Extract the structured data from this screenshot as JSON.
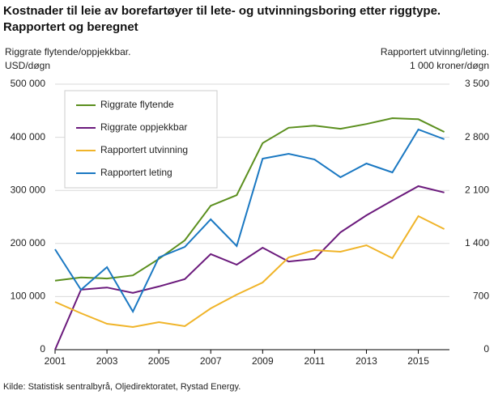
{
  "chart_data": {
    "type": "line",
    "title": "Kostnader til leie av borefartøyer til lete- og utvinningsboring etter riggtype. Rapportert og beregnet",
    "y_label": [
      "Riggrate  flytende/oppjekkbar.",
      "USD/døgn"
    ],
    "y2_label": [
      "Rapportert utvinng/leting.",
      "1 000 kroner/døgn"
    ],
    "source": "Kilde: Statistisk sentralbyrå, Oljedirektoratet, Rystad Energy.",
    "x": [
      2001,
      2002,
      2003,
      2004,
      2005,
      2006,
      2007,
      2008,
      2009,
      2010,
      2011,
      2012,
      2013,
      2014,
      2015,
      2016
    ],
    "xlim": [
      2001,
      2016.2
    ],
    "xticks": [
      2001,
      2003,
      2005,
      2007,
      2009,
      2011,
      2013,
      2015
    ],
    "ylim": [
      0,
      500000
    ],
    "yticks": [
      0,
      {
        "value": 100000,
        "label": "100 000"
      },
      {
        "value": 200000,
        "label": "200 000"
      },
      {
        "value": 300000,
        "label": "300 000"
      },
      {
        "value": 400000,
        "label": "400 000"
      },
      {
        "value": 500000,
        "label": "500 000"
      }
    ],
    "y2lim": [
      0,
      3500
    ],
    "y2ticks": [
      0,
      700,
      {
        "value": 1400,
        "label": "1 400"
      },
      {
        "value": 2100,
        "label": "2 100"
      },
      {
        "value": 2800,
        "label": "2 800"
      },
      {
        "value": 3500,
        "label": "3 500"
      }
    ],
    "grid": true,
    "legend": "upper left",
    "series": [
      {
        "name": "Riggrate flytende",
        "color": "#5b8f1e",
        "values": [
          130000,
          136000,
          134000,
          140000,
          171000,
          206000,
          271000,
          291000,
          389000,
          418000,
          422000,
          416000,
          425000,
          436000,
          434000,
          410000
        ]
      },
      {
        "name": "Riggrate oppjekkbar",
        "color": "#6b1a7c",
        "values": [
          0,
          113000,
          117000,
          107000,
          119000,
          133000,
          180000,
          160000,
          192000,
          166000,
          171000,
          221000,
          253000,
          281000,
          308000,
          296000
        ]
      },
      {
        "name": "Rapportert utvinning",
        "color": "#f0b429",
        "axis": "y2",
        "values": [
          630,
          480,
          341,
          299,
          363,
          309,
          544,
          726,
          886,
          1216,
          1312,
          1291,
          1377,
          1206,
          1761,
          1590
        ]
      },
      {
        "name": "Rapportert leting",
        "color": "#1a78c2",
        "axis": "y2",
        "values": [
          1323,
          790,
          1088,
          502,
          1216,
          1355,
          1718,
          1366,
          2518,
          2582,
          2508,
          2273,
          2454,
          2337,
          2902,
          2774
        ]
      }
    ]
  }
}
